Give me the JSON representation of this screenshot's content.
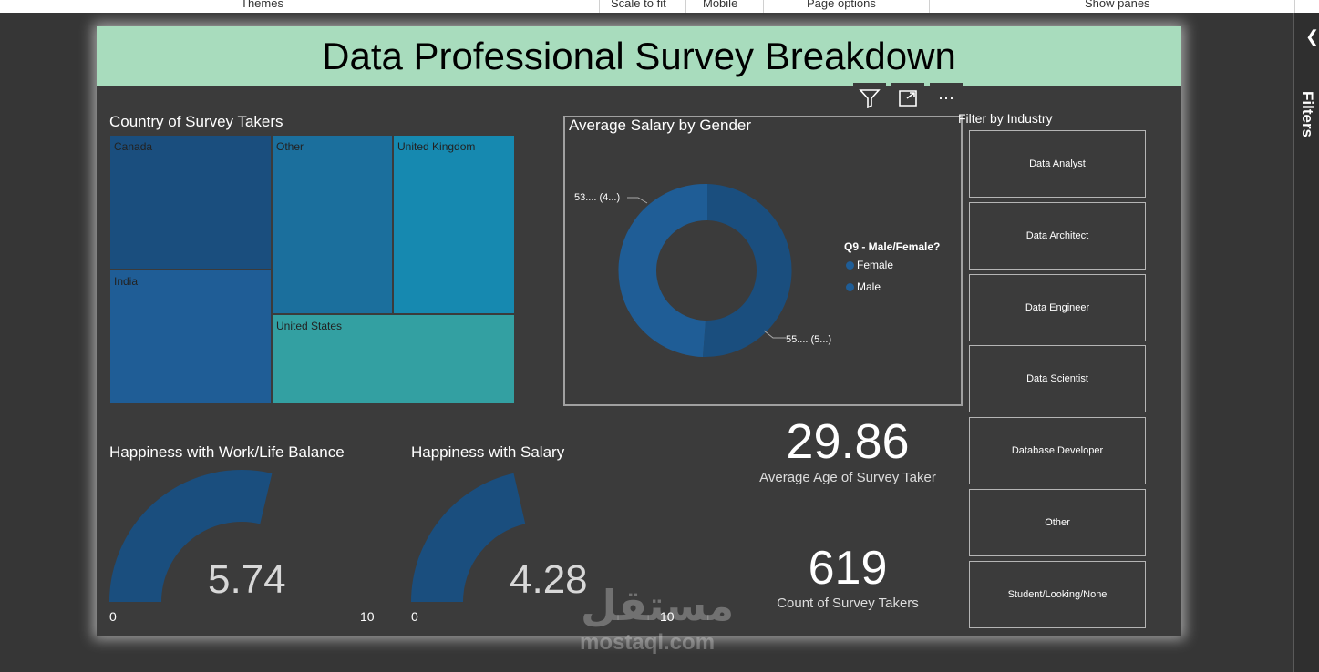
{
  "ribbon": {
    "themes": "Themes",
    "scale_to_fit": "Scale to fit",
    "mobile": "Mobile",
    "page_options": "Page options",
    "show_panes": "Show panes"
  },
  "filters_pane": {
    "label": "Filters",
    "collapse_icon": "chevron-left-icon"
  },
  "report": {
    "title": "Data Professional Survey Breakdown",
    "treemap": {
      "title": "Country of Survey Takers",
      "tiles": [
        "Canada",
        "India",
        "Other",
        "United Kingdom",
        "United States"
      ]
    },
    "donut": {
      "title": "Average Salary by Gender",
      "legend_title": "Q9 - Male/Female?",
      "legend": [
        "Female",
        "Male"
      ],
      "label_female": "53.... (4...)",
      "label_male": "55.... (5...)",
      "colors": {
        "female": "#1a4e7e",
        "male": "#1f5d96"
      }
    },
    "visual_toolbar": {
      "filter_icon": "filter-icon",
      "focus_icon": "focus-mode-icon",
      "more_icon": "more-options-icon"
    },
    "slicer": {
      "title": "Filter by Industry",
      "items": [
        "Data Analyst",
        "Data Architect",
        "Data Engineer",
        "Data Scientist",
        "Database Developer",
        "Other",
        "Student/Looking/None"
      ]
    },
    "card_age": {
      "value": "29.86",
      "label": "Average Age of Survey Taker"
    },
    "card_count": {
      "value": "619",
      "label": "Count of Survey Takers"
    },
    "gauge_worklife": {
      "title": "Happiness with Work/Life Balance",
      "value": "5.74",
      "min": "0",
      "max": "10",
      "fraction": 0.574
    },
    "gauge_salary": {
      "title": "Happiness with Salary",
      "value": "4.28",
      "min": "0",
      "max": "10",
      "fraction": 0.428
    }
  },
  "watermark": {
    "arabic": "مستقل",
    "latin": "mostaql.com"
  }
}
